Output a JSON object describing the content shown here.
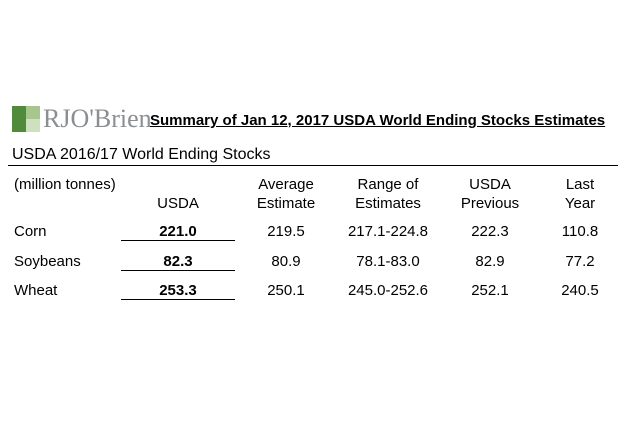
{
  "logo": {
    "text": "RJO'Brien"
  },
  "title": "Summary of Jan 12, 2017 USDA World Ending Stocks Estimates",
  "section_title": "USDA 2016/17 World Ending Stocks",
  "units": "(million tonnes)",
  "columns": [
    {
      "line1": "",
      "line2": "USDA"
    },
    {
      "line1": "Average",
      "line2": "Estimate"
    },
    {
      "line1": "Range of",
      "line2": "Estimates"
    },
    {
      "line1": "USDA",
      "line2": "Previous"
    },
    {
      "line1": "Last",
      "line2": "Year"
    }
  ],
  "rows": [
    {
      "label": "Corn",
      "usda": "221.0",
      "avg": "219.5",
      "range": "217.1-224.8",
      "prev": "222.3",
      "last": "110.8"
    },
    {
      "label": "Soybeans",
      "usda": "82.3",
      "avg": "80.9",
      "range": "78.1-83.0",
      "prev": "82.9",
      "last": "77.2"
    },
    {
      "label": "Wheat",
      "usda": "253.3",
      "avg": "250.1",
      "range": "245.0-252.6",
      "prev": "252.1",
      "last": "240.5"
    }
  ]
}
